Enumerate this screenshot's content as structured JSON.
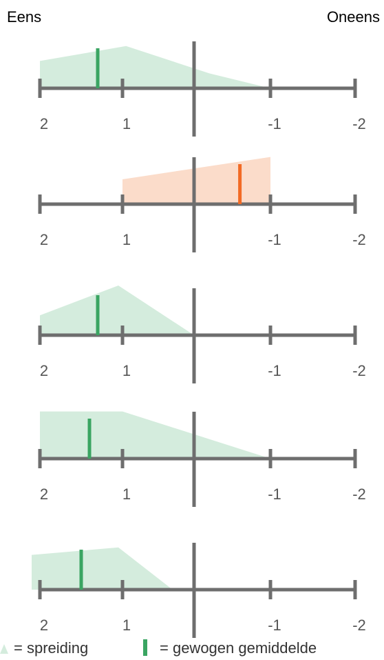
{
  "header": {
    "agree_label": "Eens",
    "disagree_label": "Oneens"
  },
  "legend": {
    "spread_label": "= spreiding",
    "mean_label": "= gewogen gemiddelde"
  },
  "colors": {
    "agree": "#3aa562",
    "agree_fill": "#d4ecdd",
    "disagree": "#f26a24",
    "disagree_fill": "#fbdcca",
    "axis": "#6e6e6e",
    "tick_text": "#555555"
  },
  "chart_data": [
    {
      "type": "area",
      "ticks": [
        "2",
        "1",
        "-1",
        "-2"
      ],
      "xlim": [
        2,
        -2
      ],
      "spread": [
        [
          2,
          0.55
        ],
        [
          0.95,
          0.85
        ],
        [
          -0.2,
          0.3
        ],
        [
          -1,
          0
        ]
      ],
      "mean": 1.3,
      "side": "agree"
    },
    {
      "type": "area",
      "ticks": [
        "2",
        "1",
        "-1",
        "-2"
      ],
      "xlim": [
        2,
        -2
      ],
      "spread": [
        [
          1,
          0.5
        ],
        [
          -1,
          0.95
        ]
      ],
      "mean": -0.6,
      "side": "disagree"
    },
    {
      "type": "area",
      "ticks": [
        "2",
        "1",
        "-1",
        "-2"
      ],
      "xlim": [
        2,
        -2
      ],
      "spread": [
        [
          2,
          0.4
        ],
        [
          1.05,
          1
        ],
        [
          0,
          0
        ]
      ],
      "mean": 1.3,
      "side": "agree"
    },
    {
      "type": "area",
      "ticks": [
        "2",
        "1",
        "-1",
        "-2"
      ],
      "xlim": [
        2,
        -2
      ],
      "spread": [
        [
          2,
          0.95
        ],
        [
          1,
          0.95
        ],
        [
          -1,
          0
        ]
      ],
      "mean": 1.4,
      "side": "agree"
    },
    {
      "type": "area",
      "ticks": [
        "2",
        "1",
        "-1",
        "-2"
      ],
      "xlim": [
        2,
        -2
      ],
      "spread": [
        [
          2.1,
          0.7
        ],
        [
          1.05,
          0.85
        ],
        [
          0.3,
          0
        ]
      ],
      "mean": 1.5,
      "side": "agree"
    }
  ]
}
